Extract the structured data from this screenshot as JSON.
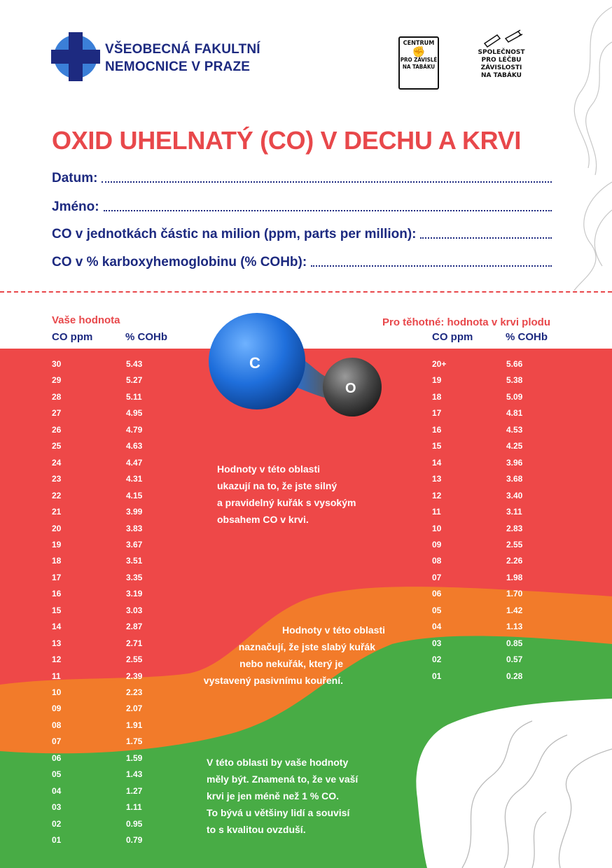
{
  "header": {
    "hospital_line1": "VŠEOBECNÁ FAKULTNÍ",
    "hospital_line2": "NEMOCNICE V PRAZE",
    "centrum_top": "CENTRUM",
    "centrum_bottom_1": "PRO ZÁVISLÉ",
    "centrum_bottom_2": "NA TABÁKU",
    "society_1": "SPOLEČNOST",
    "society_2": "PRO LÉČBU",
    "society_3": "ZÁVISLOSTI",
    "society_4": "NA TABÁKU"
  },
  "title": "OXID UHELNATÝ (CO) V DECHU A KRVI",
  "form": {
    "datum_label": "Datum:",
    "jmeno_label": "Jméno:",
    "ppm_label": "CO v jednotkách částic na milion (ppm, parts per million):",
    "cohb_label": "CO v % karboxyhemoglobinu (% COHb):"
  },
  "molecule": {
    "c": "C",
    "o": "O"
  },
  "left_table": {
    "heading": "Vaše hodnota",
    "col1": "CO ppm",
    "col2": "% COHb",
    "rows": [
      [
        "30",
        "5.43"
      ],
      [
        "29",
        "5.27"
      ],
      [
        "28",
        "5.11"
      ],
      [
        "27",
        "4.95"
      ],
      [
        "26",
        "4.79"
      ],
      [
        "25",
        "4.63"
      ],
      [
        "24",
        "4.47"
      ],
      [
        "23",
        "4.31"
      ],
      [
        "22",
        "4.15"
      ],
      [
        "21",
        "3.99"
      ],
      [
        "20",
        "3.83"
      ],
      [
        "19",
        "3.67"
      ],
      [
        "18",
        "3.51"
      ],
      [
        "17",
        "3.35"
      ],
      [
        "16",
        "3.19"
      ],
      [
        "15",
        "3.03"
      ],
      [
        "14",
        "2.87"
      ],
      [
        "13",
        "2.71"
      ],
      [
        "12",
        "2.55"
      ],
      [
        "11",
        "2.39"
      ],
      [
        "10",
        "2.23"
      ],
      [
        "09",
        "2.07"
      ],
      [
        "08",
        "1.91"
      ],
      [
        "07",
        "1.75"
      ],
      [
        "06",
        "1.59"
      ],
      [
        "05",
        "1.43"
      ],
      [
        "04",
        "1.27"
      ],
      [
        "03",
        "1.11"
      ],
      [
        "02",
        "0.95"
      ],
      [
        "01",
        "0.79"
      ]
    ]
  },
  "right_table": {
    "heading": "Pro těhotné: hodnota v krvi plodu",
    "col1": "CO ppm",
    "col2": "% COHb",
    "rows": [
      [
        "20+",
        "5.66"
      ],
      [
        "19",
        "5.38"
      ],
      [
        "18",
        "5.09"
      ],
      [
        "17",
        "4.81"
      ],
      [
        "16",
        "4.53"
      ],
      [
        "15",
        "4.25"
      ],
      [
        "14",
        "3.96"
      ],
      [
        "13",
        "3.68"
      ],
      [
        "12",
        "3.40"
      ],
      [
        "11",
        "3.11"
      ],
      [
        "10",
        "2.83"
      ],
      [
        "09",
        "2.55"
      ],
      [
        "08",
        "2.26"
      ],
      [
        "07",
        "1.98"
      ],
      [
        "06",
        "1.70"
      ],
      [
        "05",
        "1.42"
      ],
      [
        "04",
        "1.13"
      ],
      [
        "03",
        "0.85"
      ],
      [
        "02",
        "0.57"
      ],
      [
        "01",
        "0.28"
      ]
    ]
  },
  "notes": {
    "red": [
      "Hodnoty v této oblasti",
      "ukazují na to, že jste silný",
      "a pravidelný kuřák s vysokým",
      "obsahem CO v krvi."
    ],
    "orange": [
      "Hodnoty v této oblasti",
      "naznačují, že jste slabý kuřák",
      "nebo nekuřák, který je",
      "vystavený pasivnímu kouření."
    ],
    "green": [
      "V této oblasti by vaše hodnoty",
      "měly být. Znamená to, že ve vaší",
      "krvi je jen méně než 1 % CO.",
      "To bývá u většiny lidí a souvisí",
      "to s kvalitou ovzduší."
    ]
  },
  "colors": {
    "red": "#ee4848",
    "orange": "#f27b2a",
    "green": "#48ac45",
    "navy": "#1d2a80",
    "title_red": "#e8484b",
    "cross_blue": "#3b7fd8"
  }
}
